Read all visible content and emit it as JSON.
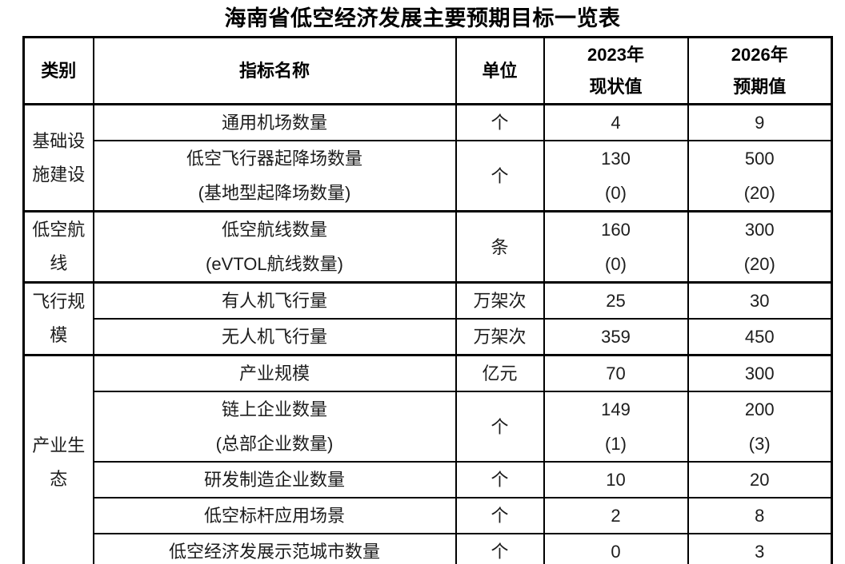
{
  "title": "海南省低空经济发展主要预期目标一览表",
  "colors": {
    "text": "#1c1c1c",
    "heading_text": "#000000",
    "border": "#000000",
    "background": "#ffffff"
  },
  "table": {
    "headers": {
      "category": "类别",
      "indicator": "指标名称",
      "unit": "单位",
      "y2023": "2023年\n现状值",
      "y2026": "2026年\n预期值"
    },
    "sections": [
      {
        "category": "基础设\n施建设",
        "rows": [
          {
            "indicator": "通用机场数量",
            "unit": "个",
            "v2023": "4",
            "v2026": "9"
          },
          {
            "indicator": "低空飞行器起降场数量\n(基地型起降场数量)",
            "unit": "个",
            "v2023": "130\n(0)",
            "v2026": "500\n(20)"
          }
        ]
      },
      {
        "category": "低空航\n线",
        "rows": [
          {
            "indicator": "低空航线数量\n(eVTOL航线数量)",
            "unit": "条",
            "v2023": "160\n(0)",
            "v2026": "300\n(20)"
          }
        ]
      },
      {
        "category": "飞行规\n模",
        "rows": [
          {
            "indicator": "有人机飞行量",
            "unit": "万架次",
            "v2023": "25",
            "v2026": "30"
          },
          {
            "indicator": "无人机飞行量",
            "unit": "万架次",
            "v2023": "359",
            "v2026": "450"
          }
        ]
      },
      {
        "category": "产业生\n态",
        "rows": [
          {
            "indicator": "产业规模",
            "unit": "亿元",
            "v2023": "70",
            "v2026": "300"
          },
          {
            "indicator": "链上企业数量\n(总部企业数量)",
            "unit": "个",
            "v2023": "149\n(1)",
            "v2026": "200\n(3)"
          },
          {
            "indicator": "研发制造企业数量",
            "unit": "个",
            "v2023": "10",
            "v2026": "20"
          },
          {
            "indicator": "低空标杆应用场景",
            "unit": "个",
            "v2023": "2",
            "v2026": "8"
          },
          {
            "indicator": "低空经济发展示范城市数量",
            "unit": "个",
            "v2023": "0",
            "v2026": "3"
          }
        ]
      }
    ]
  },
  "chart_data": {
    "type": "table",
    "title": "海南省低空经济发展主要预期目标一览表",
    "columns": [
      "类别",
      "指标名称",
      "单位",
      "2023年现状值",
      "2026年预期值"
    ],
    "rows": [
      [
        "基础设施建设",
        "通用机场数量",
        "个",
        "4",
        "9"
      ],
      [
        "基础设施建设",
        "低空飞行器起降场数量(基地型起降场数量)",
        "个",
        "130 (0)",
        "500 (20)"
      ],
      [
        "低空航线",
        "低空航线数量(eVTOL航线数量)",
        "条",
        "160 (0)",
        "300 (20)"
      ],
      [
        "飞行规模",
        "有人机飞行量",
        "万架次",
        "25",
        "30"
      ],
      [
        "飞行规模",
        "无人机飞行量",
        "万架次",
        "359",
        "450"
      ],
      [
        "产业生态",
        "产业规模",
        "亿元",
        "70",
        "300"
      ],
      [
        "产业生态",
        "链上企业数量(总部企业数量)",
        "个",
        "149 (1)",
        "200 (3)"
      ],
      [
        "产业生态",
        "研发制造企业数量",
        "个",
        "10",
        "20"
      ],
      [
        "产业生态",
        "低空标杆应用场景",
        "个",
        "2",
        "8"
      ],
      [
        "产业生态",
        "低空经济发展示范城市数量",
        "个",
        "0",
        "3"
      ]
    ]
  }
}
